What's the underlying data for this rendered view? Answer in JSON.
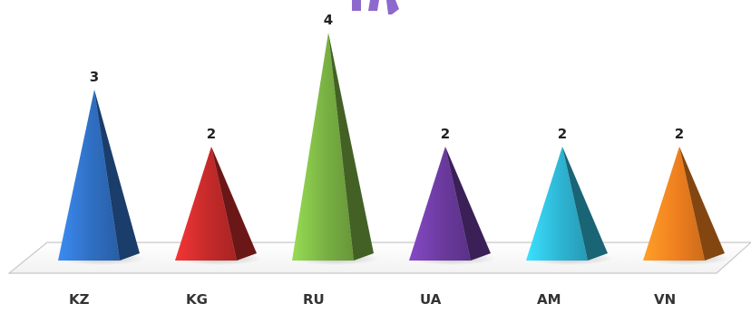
{
  "chart_data": {
    "type": "bar",
    "bar_shape": "pyramid",
    "categories": [
      "KZ",
      "KG",
      "RU",
      "UA",
      "AM",
      "VN"
    ],
    "values": [
      3,
      2,
      4,
      2,
      2,
      2
    ],
    "data_labels": [
      "3",
      "2",
      "4",
      "2",
      "2",
      "2"
    ],
    "colors": [
      "#2f6fc2",
      "#c42a2a",
      "#79b043",
      "#6a3a9e",
      "#2eb5d4",
      "#ef7f1f"
    ],
    "ylim": [
      0,
      4
    ],
    "grid": false,
    "legend": "none",
    "title_color": "#7a4fc4"
  }
}
